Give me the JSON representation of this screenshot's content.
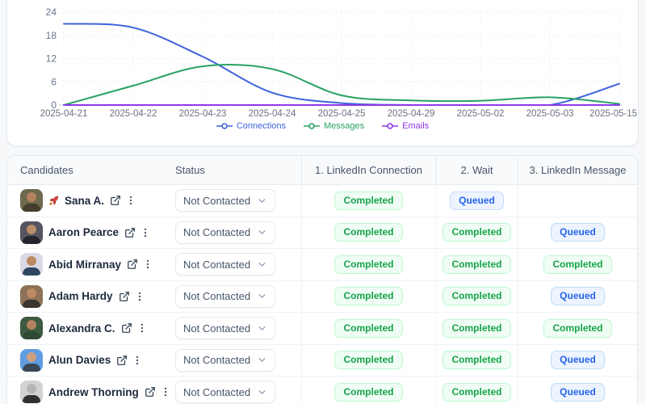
{
  "chart_data": {
    "type": "line",
    "x": [
      "2025-04-21",
      "2025-04-22",
      "2025-04-23",
      "2025-04-24",
      "2025-04-25",
      "2025-04-29",
      "2025-05-02",
      "2025-05-03",
      "2025-05-15"
    ],
    "series": [
      {
        "name": "Connections",
        "color": "#3e63dd",
        "values": [
          21,
          20,
          12.5,
          3.2,
          0.5,
          0,
          0,
          0,
          5.5
        ]
      },
      {
        "name": "Messages",
        "color": "#28a264",
        "values": [
          0,
          5,
          10,
          9.3,
          2.5,
          1.2,
          1.1,
          2,
          0.3
        ]
      },
      {
        "name": "Emails",
        "color": "#9038e8",
        "values": [
          0,
          0,
          0,
          0,
          0,
          0,
          0,
          0,
          0
        ]
      }
    ],
    "y_ticks": [
      0,
      6,
      12,
      18,
      24
    ],
    "ylim": [
      0,
      24
    ],
    "grid": true,
    "legend_position": "bottom"
  },
  "table": {
    "columns": [
      "Candidates",
      "Status",
      "1. LinkedIn Connection",
      "2. Wait",
      "3. LinkedIn Message"
    ],
    "badge_styles": {
      "Completed": {
        "color": "#16a34a",
        "bg": "#f0fdf4",
        "border": "#bbf7d0"
      },
      "Queued": {
        "color": "#2563eb",
        "bg": "#edf4ff",
        "border": "#c3d9f8"
      }
    },
    "rows": [
      {
        "name": "Sana A.",
        "rocket": true,
        "status": "Not Contacted",
        "stages": [
          "Completed",
          "Queued",
          ""
        ],
        "avatar": {
          "bg": "#6d6a4f",
          "skin": "#b5825f",
          "shirt": "#463c2e"
        }
      },
      {
        "name": "Aaron Pearce",
        "rocket": false,
        "status": "Not Contacted",
        "stages": [
          "Completed",
          "Completed",
          "Queued"
        ],
        "avatar": {
          "bg": "#54555e",
          "skin": "#b98e6a",
          "shirt": "#23252b"
        }
      },
      {
        "name": "Abid Mirranay",
        "rocket": false,
        "status": "Not Contacted",
        "stages": [
          "Completed",
          "Completed",
          "Completed"
        ],
        "avatar": {
          "bg": "#d8dae6",
          "skin": "#bd8a63",
          "shirt": "#2f4660"
        }
      },
      {
        "name": "Adam Hardy",
        "rocket": false,
        "status": "Not Contacted",
        "stages": [
          "Completed",
          "Completed",
          "Queued"
        ],
        "avatar": {
          "bg": "#8d7257",
          "skin": "#bd8a63",
          "shirt": "#3a3531"
        }
      },
      {
        "name": "Alexandra C.",
        "rocket": false,
        "status": "Not Contacted",
        "stages": [
          "Completed",
          "Completed",
          "Completed"
        ],
        "avatar": {
          "bg": "#3c5a40",
          "skin": "#b5825f",
          "shirt": "#2f4a33"
        }
      },
      {
        "name": "Alun Davies",
        "rocket": false,
        "status": "Not Contacted",
        "stages": [
          "Completed",
          "Completed",
          "Queued"
        ],
        "avatar": {
          "bg": "#5f9ce2",
          "skin": "#cfa080",
          "shirt": "#3a4754"
        }
      },
      {
        "name": "Andrew Thorning",
        "rocket": false,
        "status": "Not Contacted",
        "stages": [
          "Completed",
          "Completed",
          "Queued"
        ],
        "avatar": {
          "bg": "#d2d2d2",
          "skin": "#b5b5b5",
          "shirt": "#303030"
        }
      }
    ]
  }
}
